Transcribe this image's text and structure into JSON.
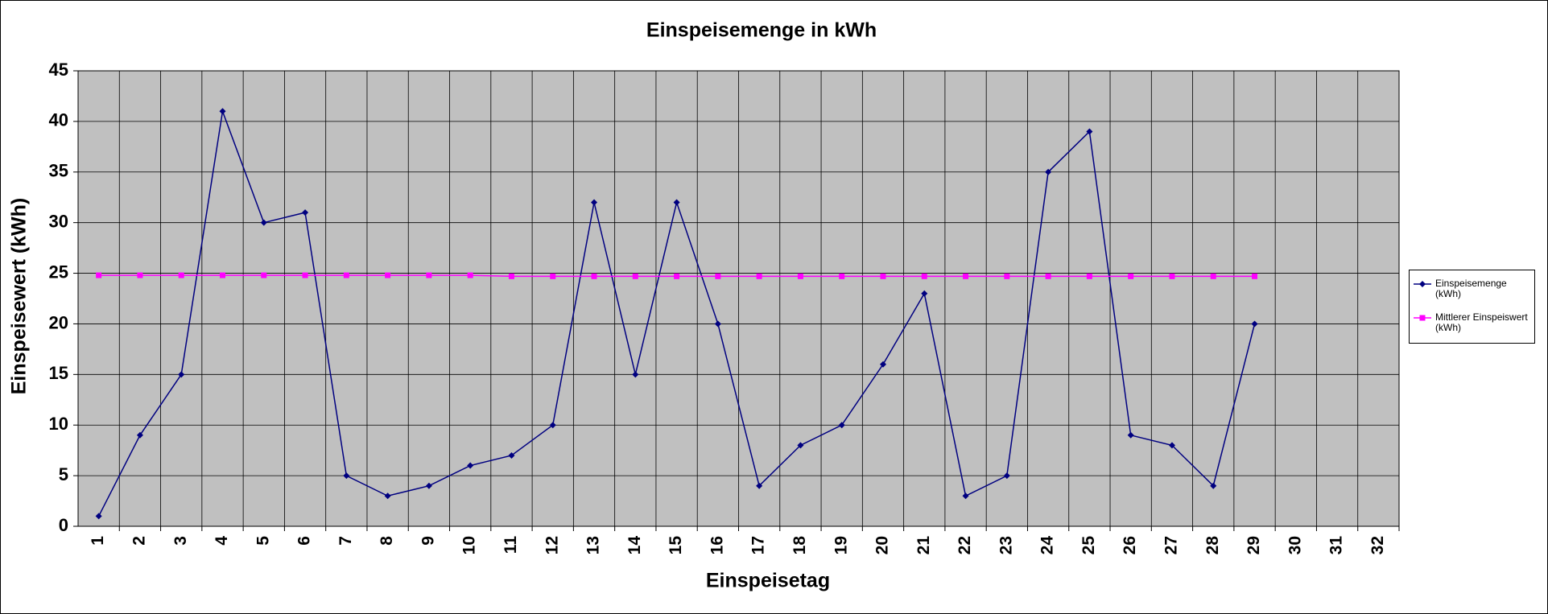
{
  "chart_data": {
    "type": "line",
    "title": "Einspeisemenge in kWh",
    "x_label": "Einspeisetag",
    "y_label": "Einspeisewert  (kWh)",
    "categories": [
      "1",
      "2",
      "3",
      "4",
      "5",
      "6",
      "7",
      "8",
      "9",
      "10",
      "11",
      "12",
      "13",
      "14",
      "15",
      "16",
      "17",
      "18",
      "19",
      "20",
      "21",
      "22",
      "23",
      "24",
      "25",
      "26",
      "27",
      "28",
      "29",
      "30",
      "31",
      "32"
    ],
    "series": [
      {
        "name": "Einspeisemenge (kWh)",
        "color": "#000080",
        "marker": "diamond",
        "values": [
          1,
          9,
          15,
          41,
          30,
          31,
          5,
          3,
          4,
          6,
          7,
          10,
          32,
          15,
          32,
          20,
          4,
          8,
          10,
          16,
          23,
          3,
          5,
          35,
          39,
          9,
          8,
          4,
          20,
          null,
          null,
          null
        ]
      },
      {
        "name": "Mittlerer Einspeiswert (kWh)",
        "color": "#ff00ff",
        "marker": "square",
        "values": [
          24.8,
          24.8,
          24.8,
          24.8,
          24.8,
          24.8,
          24.8,
          24.8,
          24.8,
          24.8,
          24.7,
          24.7,
          24.7,
          24.7,
          24.7,
          24.7,
          24.7,
          24.7,
          24.7,
          24.7,
          24.7,
          24.7,
          24.7,
          24.7,
          24.7,
          24.7,
          24.7,
          24.7,
          24.7,
          null,
          null,
          null
        ]
      }
    ],
    "ylim": [
      0,
      45
    ],
    "yticks": [
      0,
      5,
      10,
      15,
      20,
      25,
      30,
      35,
      40,
      45
    ],
    "grid": true,
    "legend": "right",
    "plot_background": "#c0c0c0"
  }
}
